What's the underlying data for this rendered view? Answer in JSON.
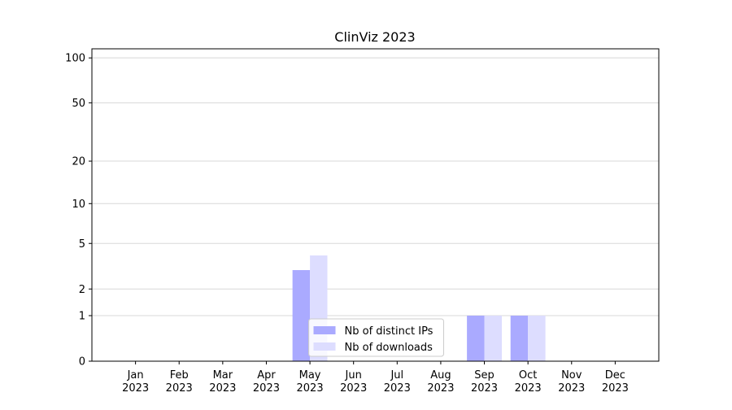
{
  "chart_data": {
    "type": "bar",
    "title": "ClinViz 2023",
    "categories": [
      "Jan 2023",
      "Feb 2023",
      "Mar 2023",
      "Apr 2023",
      "May 2023",
      "Jun 2023",
      "Jul 2023",
      "Aug 2023",
      "Sep 2023",
      "Oct 2023",
      "Nov 2023",
      "Dec 2023"
    ],
    "series": [
      {
        "name": "Nb of distinct IPs",
        "color": "#aaaaff",
        "values": [
          0,
          0,
          0,
          0,
          3,
          0,
          0,
          0,
          1,
          1,
          0,
          0
        ]
      },
      {
        "name": "Nb of downloads",
        "color": "#ddddff",
        "values": [
          0,
          0,
          0,
          0,
          4,
          0,
          0,
          0,
          1,
          1,
          0,
          0
        ]
      }
    ],
    "yscale": "log1p",
    "ylim": [
      0,
      115
    ],
    "yticks": [
      0,
      1,
      2,
      5,
      10,
      20,
      50,
      100
    ],
    "grid": true,
    "legend": "lower center"
  }
}
